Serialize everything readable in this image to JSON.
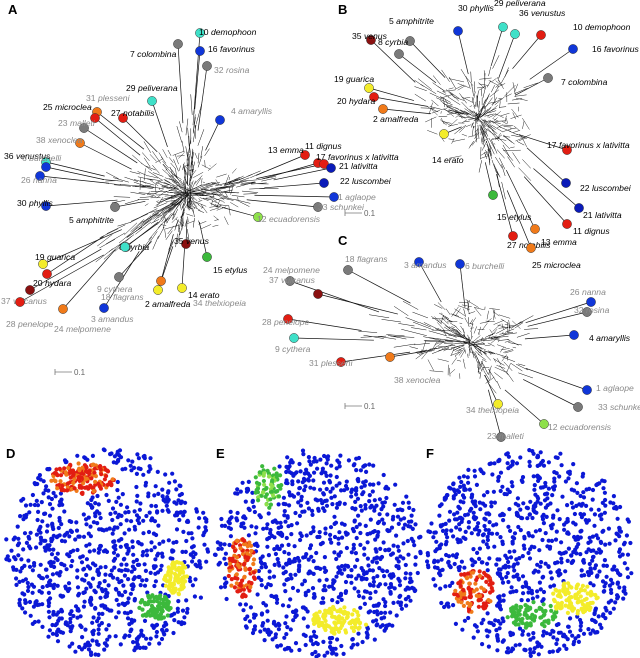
{
  "panels": {
    "A": {
      "letter": "A",
      "scale_label": "0.1"
    },
    "B": {
      "letter": "B",
      "scale_label": "0.1"
    },
    "C": {
      "letter": "C",
      "scale_label": "0.1"
    },
    "D": {
      "letter": "D"
    },
    "E": {
      "letter": "E"
    },
    "F": {
      "letter": "F"
    }
  },
  "colors": {
    "blue": "#1036d8",
    "darkblue": "#0a1ab8",
    "cyan": "#3fe0c8",
    "gray": "#7a7a7a",
    "green": "#3cb93c",
    "lightgreen": "#8ee04a",
    "yellow": "#f3ec2a",
    "orange": "#f07a1a",
    "red": "#e21d12",
    "darkred": "#8a1010"
  },
  "tree_A": {
    "labels": [
      {
        "num": "10",
        "name": "demophoon",
        "color": "cyan",
        "gray": false
      },
      {
        "num": "7",
        "name": "colombina",
        "color": "gray",
        "gray": false
      },
      {
        "num": "16",
        "name": "favorinus",
        "color": "blue",
        "gray": false
      },
      {
        "num": "32",
        "name": "rosina",
        "color": "gray",
        "gray": true
      },
      {
        "num": "29",
        "name": "peliverana",
        "color": "cyan",
        "gray": false
      },
      {
        "num": "31",
        "name": "plesseni",
        "color": "orange",
        "gray": true
      },
      {
        "num": "25",
        "name": "microclea",
        "color": "red",
        "gray": false
      },
      {
        "num": "27",
        "name": "notabilis",
        "color": "red",
        "gray": false
      },
      {
        "num": "23",
        "name": "malleti",
        "color": "gray",
        "gray": true
      },
      {
        "num": "4",
        "name": "amaryllis",
        "color": "blue",
        "gray": true
      },
      {
        "num": "38",
        "name": "xenoclea",
        "color": "orange",
        "gray": true
      },
      {
        "num": "36",
        "name": "venustus",
        "color": "cyan",
        "gray": false
      },
      {
        "num": "6",
        "name": "burchelli",
        "color": "blue",
        "gray": true
      },
      {
        "num": "26",
        "name": "nanna",
        "color": "blue",
        "gray": true
      },
      {
        "num": "13",
        "name": "emma",
        "color": "red",
        "gray": false
      },
      {
        "num": "11",
        "name": "dignus",
        "color": "red",
        "gray": false
      },
      {
        "num": "17",
        "name": "favorinus x lativitta",
        "color": "red",
        "gray": false
      },
      {
        "num": "21",
        "name": "lativitta",
        "color": "darkblue",
        "gray": false
      },
      {
        "num": "22",
        "name": "luscombei",
        "color": "darkblue",
        "gray": false
      },
      {
        "num": "30",
        "name": "phyllis",
        "color": "blue",
        "gray": false
      },
      {
        "num": "5",
        "name": "amphitrite",
        "color": "gray",
        "gray": false
      },
      {
        "num": "1",
        "name": "aglaope",
        "color": "blue",
        "gray": true
      },
      {
        "num": "33",
        "name": "schunkei",
        "color": "gray",
        "gray": true
      },
      {
        "num": "12",
        "name": "ecuadorensis",
        "color": "lightgreen",
        "gray": true
      },
      {
        "num": "35",
        "name": "venus",
        "color": "darkred",
        "gray": false
      },
      {
        "num": "19",
        "name": "guarica",
        "color": "yellow",
        "gray": false
      },
      {
        "num": "8",
        "name": "cyrbia",
        "color": "gray",
        "gray": false
      },
      {
        "num": "15",
        "name": "etylus",
        "color": "green",
        "gray": false
      },
      {
        "num": "20",
        "name": "hydara",
        "color": "red",
        "gray": false
      },
      {
        "num": "9",
        "name": "cythera",
        "color": "cyan",
        "gray": true
      },
      {
        "num": "37",
        "name": "vulcanus",
        "color": "darkred",
        "gray": true
      },
      {
        "num": "18",
        "name": "flagrans",
        "color": "gray",
        "gray": true
      },
      {
        "num": "2",
        "name": "amalfreda",
        "color": "orange",
        "gray": false
      },
      {
        "num": "14",
        "name": "erato",
        "color": "yellow",
        "gray": false
      },
      {
        "num": "34",
        "name": "thelxiopeia",
        "color": "yellow",
        "gray": true
      },
      {
        "num": "28",
        "name": "penelope",
        "color": "red",
        "gray": true
      },
      {
        "num": "3",
        "name": "amandus",
        "color": "blue",
        "gray": true
      },
      {
        "num": "24",
        "name": "melpomene",
        "color": "orange",
        "gray": true
      }
    ]
  },
  "tree_B": {
    "labels": [
      {
        "num": "30",
        "name": "phyllis",
        "color": "blue",
        "gray": false
      },
      {
        "num": "29",
        "name": "peliverana",
        "color": "cyan",
        "gray": false
      },
      {
        "num": "5",
        "name": "amphitrite",
        "color": "gray",
        "gray": false
      },
      {
        "num": "36",
        "name": "venustus",
        "color": "cyan",
        "gray": false
      },
      {
        "num": "10",
        "name": "demophoon",
        "color": "red",
        "gray": false
      },
      {
        "num": "35",
        "name": "venus",
        "color": "darkred",
        "gray": false
      },
      {
        "num": "16",
        "name": "favorinus",
        "color": "blue",
        "gray": false
      },
      {
        "num": "8",
        "name": "cyrbia",
        "color": "gray",
        "gray": false
      },
      {
        "num": "19",
        "name": "guarica",
        "color": "yellow",
        "gray": false
      },
      {
        "num": "7",
        "name": "colombina",
        "color": "gray",
        "gray": false
      },
      {
        "num": "20",
        "name": "hydara",
        "color": "red",
        "gray": false
      },
      {
        "num": "2",
        "name": "amalfreda",
        "color": "orange",
        "gray": false
      },
      {
        "num": "14",
        "name": "erato",
        "color": "yellow",
        "gray": false
      },
      {
        "num": "17",
        "name": "favorinus x lativitta",
        "color": "red",
        "gray": false
      },
      {
        "num": "22",
        "name": "luscombei",
        "color": "darkblue",
        "gray": false
      },
      {
        "num": "21",
        "name": "lativitta",
        "color": "darkblue",
        "gray": false
      },
      {
        "num": "11",
        "name": "dignus",
        "color": "red",
        "gray": false
      },
      {
        "num": "15",
        "name": "etylus",
        "color": "green",
        "gray": false
      },
      {
        "num": "13",
        "name": "emma",
        "color": "orange",
        "gray": false
      },
      {
        "num": "27",
        "name": "notabilis",
        "color": "red",
        "gray": false
      },
      {
        "num": "25",
        "name": "microclea",
        "color": "orange",
        "gray": false
      }
    ]
  },
  "tree_C": {
    "labels": [
      {
        "num": "18",
        "name": "flagrans",
        "color": "gray",
        "gray": true
      },
      {
        "num": "3",
        "name": "amandus",
        "color": "blue",
        "gray": true
      },
      {
        "num": "6",
        "name": "burchelli",
        "color": "blue",
        "gray": true
      },
      {
        "num": "24",
        "name": "melpomene",
        "color": "gray",
        "gray": true
      },
      {
        "num": "37",
        "name": "vulcanus",
        "color": "darkred",
        "gray": true
      },
      {
        "num": "26",
        "name": "nanna",
        "color": "blue",
        "gray": true
      },
      {
        "num": "32",
        "name": "rosina",
        "color": "gray",
        "gray": true
      },
      {
        "num": "28",
        "name": "penelope",
        "color": "red",
        "gray": true
      },
      {
        "num": "4",
        "name": "amaryllis",
        "color": "blue",
        "gray": false
      },
      {
        "num": "9",
        "name": "cythera",
        "color": "cyan",
        "gray": true
      },
      {
        "num": "31",
        "name": "plesseni",
        "color": "red",
        "gray": true
      },
      {
        "num": "38",
        "name": "xenoclea",
        "color": "orange",
        "gray": true
      },
      {
        "num": "1",
        "name": "aglaope",
        "color": "blue",
        "gray": true
      },
      {
        "num": "33",
        "name": "schunkei",
        "color": "gray",
        "gray": true
      },
      {
        "num": "34",
        "name": "thelxiopeia",
        "color": "yellow",
        "gray": true
      },
      {
        "num": "12",
        "name": "ecuadorensis",
        "color": "lightgreen",
        "gray": true
      },
      {
        "num": "23",
        "name": "malleti",
        "color": "gray",
        "gray": true
      }
    ]
  }
}
